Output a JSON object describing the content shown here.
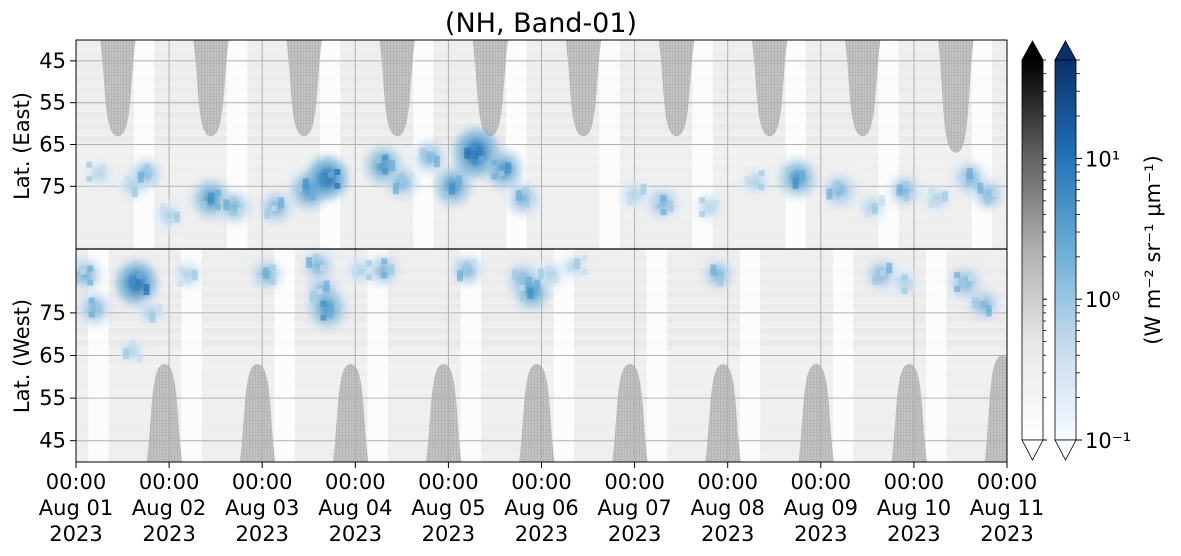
{
  "chart_data": {
    "type": "heatmap",
    "title": "(NH, Band-01)",
    "ylabel_top": "Lat. (East)",
    "ylabel_bottom": "Lat. (West)",
    "x_ticks": [
      {
        "time": "00:00",
        "date": "Aug 01",
        "year": "2023"
      },
      {
        "time": "00:00",
        "date": "Aug 02",
        "year": "2023"
      },
      {
        "time": "00:00",
        "date": "Aug 03",
        "year": "2023"
      },
      {
        "time": "00:00",
        "date": "Aug 04",
        "year": "2023"
      },
      {
        "time": "00:00",
        "date": "Aug 05",
        "year": "2023"
      },
      {
        "time": "00:00",
        "date": "Aug 06",
        "year": "2023"
      },
      {
        "time": "00:00",
        "date": "Aug 07",
        "year": "2023"
      },
      {
        "time": "00:00",
        "date": "Aug 08",
        "year": "2023"
      },
      {
        "time": "00:00",
        "date": "Aug 09",
        "year": "2023"
      },
      {
        "time": "00:00",
        "date": "Aug 10",
        "year": "2023"
      },
      {
        "time": "00:00",
        "date": "Aug 11",
        "year": "2023"
      }
    ],
    "xlim": [
      "2023-08-01 00:00",
      "2023-08-11 00:00"
    ],
    "y_ticks_top": [
      "45",
      "55",
      "65",
      "75"
    ],
    "y_ticks_bottom": [
      "75",
      "65",
      "55",
      "45"
    ],
    "ylim_lat": [
      40,
      90
    ],
    "grid": true,
    "colorbar": {
      "label": "(W m⁻² sr⁻¹ μm⁻¹)",
      "ticks": [
        "10⁻¹",
        "10⁰",
        "10¹"
      ],
      "range": [
        0.1,
        50
      ],
      "scale": "log",
      "colormaps": [
        "Greys",
        "Blues"
      ],
      "extend": "both"
    },
    "gray_daylight_regions_top": [
      {
        "center_day": 0.45,
        "min_lat": 63
      },
      {
        "center_day": 1.45,
        "min_lat": 63
      },
      {
        "center_day": 2.45,
        "min_lat": 63
      },
      {
        "center_day": 3.45,
        "min_lat": 63
      },
      {
        "center_day": 4.45,
        "min_lat": 63
      },
      {
        "center_day": 5.45,
        "min_lat": 63
      },
      {
        "center_day": 6.45,
        "min_lat": 63
      },
      {
        "center_day": 7.45,
        "min_lat": 63
      },
      {
        "center_day": 8.45,
        "min_lat": 63
      },
      {
        "center_day": 9.45,
        "min_lat": 67
      }
    ],
    "gray_daylight_regions_bottom": [
      {
        "center_day": 0.95,
        "min_lat": 63
      },
      {
        "center_day": 1.95,
        "min_lat": 63
      },
      {
        "center_day": 2.95,
        "min_lat": 63
      },
      {
        "center_day": 3.95,
        "min_lat": 63
      },
      {
        "center_day": 4.95,
        "min_lat": 63
      },
      {
        "center_day": 5.95,
        "min_lat": 63
      },
      {
        "center_day": 6.95,
        "min_lat": 63
      },
      {
        "center_day": 7.95,
        "min_lat": 63
      },
      {
        "center_day": 8.95,
        "min_lat": 63
      },
      {
        "center_day": 9.95,
        "min_lat": 65
      }
    ],
    "aurora_blobs": [
      {
        "hemi": "east",
        "day": 0.25,
        "lat": 72,
        "intensity": 1.5
      },
      {
        "hemi": "east",
        "day": 0.6,
        "lat": 75,
        "intensity": 2
      },
      {
        "hemi": "east",
        "day": 0.75,
        "lat": 72,
        "intensity": 2.5
      },
      {
        "hemi": "east",
        "day": 1.0,
        "lat": 82,
        "intensity": 2
      },
      {
        "hemi": "east",
        "day": 1.45,
        "lat": 78,
        "intensity": 4
      },
      {
        "hemi": "east",
        "day": 1.7,
        "lat": 80,
        "intensity": 3
      },
      {
        "hemi": "east",
        "day": 2.15,
        "lat": 80,
        "intensity": 3
      },
      {
        "hemi": "east",
        "day": 2.5,
        "lat": 76,
        "intensity": 4
      },
      {
        "hemi": "east",
        "day": 2.7,
        "lat": 73,
        "intensity": 5
      },
      {
        "hemi": "east",
        "day": 3.3,
        "lat": 70,
        "intensity": 4
      },
      {
        "hemi": "east",
        "day": 3.5,
        "lat": 74,
        "intensity": 3
      },
      {
        "hemi": "east",
        "day": 3.8,
        "lat": 68,
        "intensity": 3
      },
      {
        "hemi": "east",
        "day": 4.05,
        "lat": 75,
        "intensity": 4
      },
      {
        "hemi": "east",
        "day": 4.3,
        "lat": 67,
        "intensity": 6
      },
      {
        "hemi": "east",
        "day": 4.6,
        "lat": 71,
        "intensity": 4
      },
      {
        "hemi": "east",
        "day": 4.8,
        "lat": 78,
        "intensity": 3
      },
      {
        "hemi": "east",
        "day": 6.0,
        "lat": 77,
        "intensity": 2
      },
      {
        "hemi": "east",
        "day": 6.3,
        "lat": 79,
        "intensity": 2.5
      },
      {
        "hemi": "east",
        "day": 6.8,
        "lat": 80,
        "intensity": 2
      },
      {
        "hemi": "east",
        "day": 7.3,
        "lat": 74,
        "intensity": 2
      },
      {
        "hemi": "east",
        "day": 7.75,
        "lat": 73,
        "intensity": 4
      },
      {
        "hemi": "east",
        "day": 8.2,
        "lat": 76,
        "intensity": 3
      },
      {
        "hemi": "east",
        "day": 8.55,
        "lat": 80,
        "intensity": 2
      },
      {
        "hemi": "east",
        "day": 8.9,
        "lat": 76,
        "intensity": 2.5
      },
      {
        "hemi": "east",
        "day": 9.25,
        "lat": 78,
        "intensity": 2
      },
      {
        "hemi": "east",
        "day": 9.6,
        "lat": 73,
        "intensity": 3
      },
      {
        "hemi": "east",
        "day": 9.8,
        "lat": 77,
        "intensity": 2.5
      },
      {
        "hemi": "west",
        "day": 0.1,
        "lat": 84,
        "intensity": 3
      },
      {
        "hemi": "west",
        "day": 0.2,
        "lat": 76,
        "intensity": 3
      },
      {
        "hemi": "west",
        "day": 0.65,
        "lat": 82,
        "intensity": 5
      },
      {
        "hemi": "west",
        "day": 0.8,
        "lat": 75,
        "intensity": 2
      },
      {
        "hemi": "west",
        "day": 0.6,
        "lat": 66,
        "intensity": 1.5
      },
      {
        "hemi": "west",
        "day": 1.2,
        "lat": 84,
        "intensity": 2
      },
      {
        "hemi": "west",
        "day": 2.05,
        "lat": 84,
        "intensity": 2.5
      },
      {
        "hemi": "west",
        "day": 2.6,
        "lat": 86,
        "intensity": 2.5
      },
      {
        "hemi": "west",
        "day": 2.65,
        "lat": 80,
        "intensity": 3
      },
      {
        "hemi": "west",
        "day": 2.7,
        "lat": 76,
        "intensity": 4
      },
      {
        "hemi": "west",
        "day": 3.05,
        "lat": 85,
        "intensity": 2
      },
      {
        "hemi": "west",
        "day": 3.3,
        "lat": 85,
        "intensity": 2.5
      },
      {
        "hemi": "west",
        "day": 4.2,
        "lat": 85,
        "intensity": 2.5
      },
      {
        "hemi": "west",
        "day": 4.8,
        "lat": 83,
        "intensity": 3
      },
      {
        "hemi": "west",
        "day": 4.9,
        "lat": 80,
        "intensity": 3.5
      },
      {
        "hemi": "west",
        "day": 5.1,
        "lat": 84,
        "intensity": 2
      },
      {
        "hemi": "west",
        "day": 5.35,
        "lat": 86,
        "intensity": 1.5
      },
      {
        "hemi": "west",
        "day": 6.9,
        "lat": 84,
        "intensity": 2.5
      },
      {
        "hemi": "west",
        "day": 8.65,
        "lat": 84,
        "intensity": 2.5
      },
      {
        "hemi": "west",
        "day": 8.9,
        "lat": 82,
        "intensity": 2
      },
      {
        "hemi": "west",
        "day": 9.55,
        "lat": 82,
        "intensity": 3
      },
      {
        "hemi": "west",
        "day": 9.75,
        "lat": 77,
        "intensity": 2.5
      }
    ]
  }
}
